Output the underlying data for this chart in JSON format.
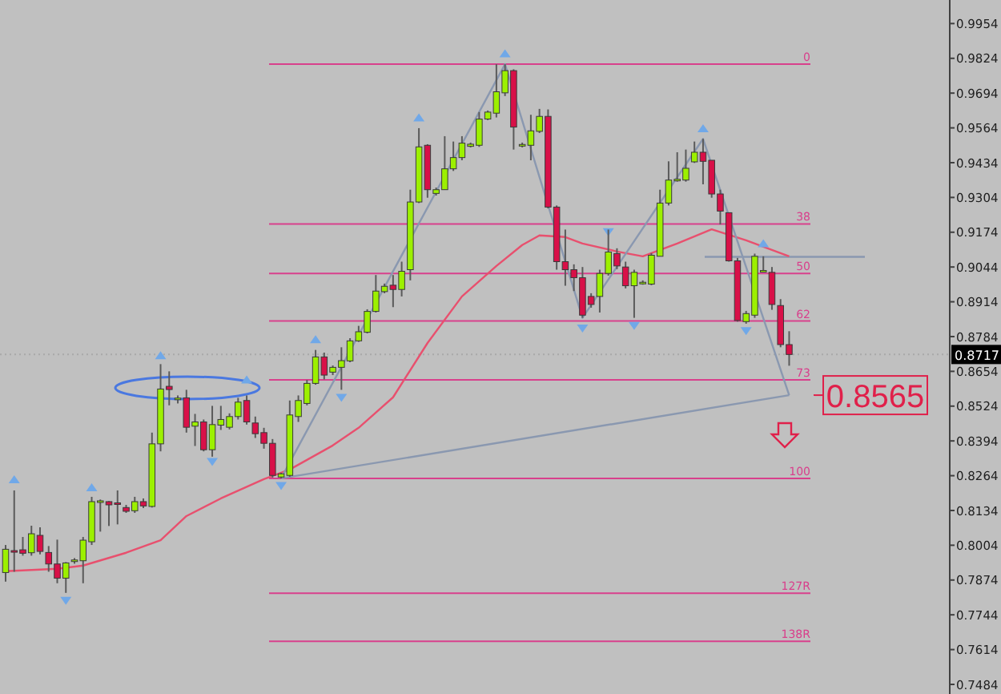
{
  "chart_data": {
    "type": "candlestick",
    "tick_labels": "y",
    "grid": false,
    "categories": [
      null,
      null,
      null,
      null,
      null,
      null,
      null,
      null,
      null,
      null,
      null,
      null,
      null,
      null,
      null,
      null,
      null,
      null,
      null,
      null,
      null,
      null,
      null,
      null,
      null,
      null,
      null,
      null,
      null,
      null,
      null,
      null,
      null,
      null,
      null,
      null,
      null,
      null,
      null,
      null,
      null,
      null,
      null,
      null,
      null,
      null,
      null,
      null,
      null,
      null,
      null,
      null,
      null,
      null,
      null,
      null,
      null,
      null,
      null,
      null,
      null,
      null,
      null,
      null,
      null,
      null,
      null,
      null,
      null,
      null,
      null,
      null,
      null,
      null,
      null,
      null,
      null,
      null,
      null,
      null,
      null,
      null,
      null,
      null,
      null,
      null,
      null,
      null,
      null,
      null,
      null,
      null,
      null,
      null,
      null,
      null,
      null,
      null,
      null,
      null,
      null,
      null,
      null,
      null,
      null,
      null,
      null,
      null,
      null,
      null
    ],
    "colors": [
      "#9cf000",
      "#d81048",
      "#d81048",
      "#9cf000",
      "#d81048",
      "#d81048",
      "#d81048",
      "#9cf000",
      "#9cf000",
      "#9cf000",
      "#9cf000",
      "#9cf000",
      "#d81048",
      "#d81048",
      "#d81048",
      "#9cf000",
      "#d81048",
      "#9cf000",
      "#9cf000",
      "#d81048",
      "#9cf000",
      "#d81048",
      "#9cf000",
      "#d81048",
      "#9cf000",
      "#9cf000",
      "#9cf000",
      "#9cf000",
      "#d81048",
      "#d81048",
      "#d81048",
      "#d81048",
      "#9cf000",
      "#9cf000",
      "#9cf000",
      "#9cf000",
      "#9cf000",
      "#d81048",
      "#9cf000",
      "#9cf000",
      "#9cf000",
      "#9cf000",
      "#9cf000",
      "#9cf000",
      "#9cf000",
      "#d81048",
      "#9cf000",
      "#9cf000",
      "#9cf000",
      "#d81048",
      "#9cf000",
      "#9cf000",
      "#9cf000",
      "#9cf000",
      "#9cf000",
      "#9cf000",
      "#9cf000",
      "#9cf000",
      "#9cf000",
      "#d81048",
      "#9cf000",
      "#9cf000",
      "#9cf000",
      "#d81048",
      "#d81048",
      "#d81048",
      "#d81048",
      "#d81048",
      "#d81048",
      "#9cf000",
      "#9cf000",
      "#d81048",
      "#d81048",
      "#9cf000",
      "#9cf000",
      "#9cf000",
      "#9cf000",
      "#9cf000",
      "#9cf000",
      "#9cf000",
      "#9cf000",
      "#d81048",
      "#d81048",
      "#d81048",
      "#d81048",
      "#d81048",
      "#9cf000",
      "#9cf000",
      "#9cf000",
      "#d81048",
      "#d81048",
      "#d81048",
      null,
      null,
      null,
      null,
      null,
      null,
      null,
      null,
      null,
      null,
      null,
      null,
      null,
      null,
      null,
      null,
      null,
      null
    ],
    "ylim": [
      0.7448,
      1.0042
    ],
    "yticks": [
      0.9954,
      0.9824,
      0.9694,
      0.9564,
      0.9434,
      0.9304,
      0.9174,
      0.9044,
      0.8914,
      0.8784,
      0.8654,
      0.8524,
      0.8394,
      0.8264,
      0.8134,
      0.8004,
      0.7874,
      0.7744,
      0.7614,
      0.7484
    ],
    "ohlc": [
      [
        0.7902,
        0.8005,
        0.7868,
        0.7989
      ],
      [
        0.7984,
        0.8209,
        0.7905,
        0.7978
      ],
      [
        0.7987,
        0.8035,
        0.7965,
        0.7974
      ],
      [
        0.7976,
        0.8077,
        0.7965,
        0.8047
      ],
      [
        0.8041,
        0.8071,
        0.797,
        0.7981
      ],
      [
        0.7977,
        0.8001,
        0.7905,
        0.7934
      ],
      [
        0.7934,
        0.8025,
        0.7862,
        0.7881
      ],
      [
        0.7881,
        0.7941,
        0.7826,
        0.7938
      ],
      [
        0.7946,
        0.7956,
        0.7935,
        0.7946
      ],
      [
        0.7946,
        0.8035,
        0.7862,
        0.8023
      ],
      [
        0.8017,
        0.8185,
        0.8005,
        0.8167
      ],
      [
        0.8167,
        0.8175,
        0.8055,
        0.8167
      ],
      [
        0.8167,
        0.8169,
        0.8076,
        0.8155
      ],
      [
        0.8161,
        0.8209,
        0.8082,
        0.8158
      ],
      [
        0.8145,
        0.8155,
        0.8125,
        0.8131
      ],
      [
        0.8133,
        0.8185,
        0.8125,
        0.8167
      ],
      [
        0.8167,
        0.8179,
        0.8143,
        0.8151
      ],
      [
        0.8149,
        0.8425,
        0.8145,
        0.8383
      ],
      [
        0.8383,
        0.8681,
        0.8355,
        0.8588
      ],
      [
        0.8598,
        0.8654,
        0.8527,
        0.8586
      ],
      [
        0.8551,
        0.8564,
        0.8534,
        0.8551
      ],
      [
        0.8555,
        0.8585,
        0.8425,
        0.8445
      ],
      [
        0.8449,
        0.8495,
        0.8375,
        0.8465
      ],
      [
        0.8465,
        0.8474,
        0.8355,
        0.8361
      ],
      [
        0.8361,
        0.8525,
        0.8335,
        0.8455
      ],
      [
        0.8453,
        0.8525,
        0.8435,
        0.8474
      ],
      [
        0.8445,
        0.8497,
        0.8437,
        0.8485
      ],
      [
        0.8485,
        0.8555,
        0.8474,
        0.8539
      ],
      [
        0.8545,
        0.8564,
        0.8455,
        0.8465
      ],
      [
        0.8461,
        0.8485,
        0.8405,
        0.8421
      ],
      [
        0.8425,
        0.8443,
        0.8365,
        0.8385
      ],
      [
        0.8385,
        0.8401,
        0.8257,
        0.8265
      ],
      [
        0.8259,
        0.8275,
        0.8254,
        0.8271
      ],
      [
        0.8265,
        0.8545,
        0.826,
        0.8491
      ],
      [
        0.8485,
        0.8564,
        0.8465,
        0.8545
      ],
      [
        0.8534,
        0.8622,
        0.8527,
        0.8609
      ],
      [
        0.8609,
        0.8734,
        0.8604,
        0.8708
      ],
      [
        0.8708,
        0.8724,
        0.8624,
        0.864
      ],
      [
        0.8651,
        0.8676,
        0.864,
        0.8669
      ],
      [
        0.8669,
        0.8744,
        0.8585,
        0.8694
      ],
      [
        0.8693,
        0.8778,
        0.8688,
        0.8768
      ],
      [
        0.8768,
        0.8824,
        0.8764,
        0.8802
      ],
      [
        0.88,
        0.8886,
        0.8796,
        0.8878
      ],
      [
        0.8878,
        0.9014,
        0.8874,
        0.8954
      ],
      [
        0.8952,
        0.8982,
        0.8946,
        0.8972
      ],
      [
        0.8976,
        0.9014,
        0.8894,
        0.896
      ],
      [
        0.896,
        0.9064,
        0.8934,
        0.9028
      ],
      [
        0.9034,
        0.9333,
        0.8994,
        0.9287
      ],
      [
        0.9287,
        0.9563,
        0.9283,
        0.9493
      ],
      [
        0.9499,
        0.9503,
        0.9303,
        0.9333
      ],
      [
        0.9319,
        0.9341,
        0.9311,
        0.9333
      ],
      [
        0.9333,
        0.9533,
        0.9333,
        0.9411
      ],
      [
        0.9411,
        0.9513,
        0.9403,
        0.9453
      ],
      [
        0.9453,
        0.9533,
        0.9443,
        0.9507
      ],
      [
        0.9495,
        0.9509,
        0.9491,
        0.9503
      ],
      [
        0.9499,
        0.9623,
        0.9493,
        0.9597
      ],
      [
        0.9597,
        0.9629,
        0.9593,
        0.9623
      ],
      [
        0.9619,
        0.9802,
        0.9603,
        0.9699
      ],
      [
        0.9695,
        0.9802,
        0.9683,
        0.9778
      ],
      [
        0.9778,
        0.9783,
        0.9483,
        0.9567
      ],
      [
        0.9499,
        0.9509,
        0.9491,
        0.9499
      ],
      [
        0.9499,
        0.9613,
        0.9443,
        0.9553
      ],
      [
        0.9551,
        0.9635,
        0.9545,
        0.9607
      ],
      [
        0.9607,
        0.9633,
        0.9263,
        0.9268
      ],
      [
        0.9268,
        0.9274,
        0.9034,
        0.9064
      ],
      [
        0.9064,
        0.9184,
        0.8974,
        0.9034
      ],
      [
        0.9034,
        0.9054,
        0.8954,
        0.9004
      ],
      [
        0.9004,
        0.9044,
        0.8854,
        0.8864
      ],
      [
        0.8934,
        0.8946,
        0.8892,
        0.8904
      ],
      [
        0.8934,
        0.9034,
        0.8874,
        0.902
      ],
      [
        0.902,
        0.9184,
        0.9012,
        0.91
      ],
      [
        0.9094,
        0.9114,
        0.9036,
        0.9048
      ],
      [
        0.9044,
        0.9064,
        0.8964,
        0.8974
      ],
      [
        0.8974,
        0.9034,
        0.8854,
        0.9024
      ],
      [
        0.8984,
        0.8994,
        0.8978,
        0.8984
      ],
      [
        0.898,
        0.9096,
        0.8976,
        0.9088
      ],
      [
        0.9084,
        0.9333,
        0.9084,
        0.9283
      ],
      [
        0.9283,
        0.9439,
        0.9274,
        0.9369
      ],
      [
        0.9369,
        0.9473,
        0.9363,
        0.9369
      ],
      [
        0.9369,
        0.9483,
        0.9363,
        0.9413
      ],
      [
        0.9437,
        0.9513,
        0.9433,
        0.9473
      ],
      [
        0.9473,
        0.9523,
        0.9353,
        0.9439
      ],
      [
        0.9443,
        0.9443,
        0.9303,
        0.9317
      ],
      [
        0.9317,
        0.9333,
        0.9203,
        0.9253
      ],
      [
        0.9247,
        0.9247,
        0.9064,
        0.9067
      ],
      [
        0.9067,
        0.9078,
        0.884,
        0.8844
      ],
      [
        0.884,
        0.888,
        0.8832,
        0.887
      ],
      [
        0.8864,
        0.9094,
        0.8854,
        0.9084
      ],
      [
        0.9028,
        0.9084,
        0.9024,
        0.9028
      ],
      [
        0.9024,
        0.9044,
        0.8884,
        0.8904
      ],
      [
        0.89,
        0.8924,
        0.8744,
        0.8754
      ],
      [
        0.8754,
        0.8804,
        0.8675,
        0.8717
      ],
      null,
      null,
      null,
      null,
      null,
      null,
      null,
      null,
      null,
      null,
      null,
      null,
      null,
      null,
      null,
      null,
      null,
      null
    ],
    "series": [
      {
        "type": "line",
        "color": "#e8506e",
        "values": [
          0.7907,
          null,
          null,
          null,
          null,
          null,
          0.7916,
          null,
          null,
          0.7928,
          null,
          null,
          null,
          null,
          0.7976,
          null,
          null,
          null,
          0.8023,
          null,
          null,
          0.8113,
          null,
          null,
          null,
          0.8179,
          null,
          null,
          null,
          null,
          0.8251,
          null,
          null,
          0.8287,
          null,
          null,
          null,
          null,
          0.8377,
          null,
          null,
          0.8443,
          null,
          null,
          null,
          0.8557,
          null,
          null,
          null,
          0.876,
          null,
          null,
          null,
          0.8934,
          null,
          null,
          null,
          0.9048,
          null,
          null,
          0.9126,
          null,
          0.9162,
          null,
          null,
          0.9156,
          null,
          0.9132,
          null,
          null,
          null,
          0.9102,
          null,
          null,
          0.9084,
          null,
          null,
          null,
          0.9132,
          null,
          null,
          null,
          0.9185,
          null,
          null,
          null,
          0.9144,
          null,
          null,
          null,
          null,
          0.9084,
          null,
          null,
          null,
          null,
          null,
          null,
          null,
          null,
          null,
          null,
          null,
          null,
          null,
          null,
          null,
          null,
          null,
          null
        ]
      },
      {
        "type": "line",
        "color": "#8a98b0",
        "values": [
          null,
          null,
          null,
          null,
          null,
          null,
          null,
          null,
          null,
          null,
          null,
          null,
          null,
          null,
          null,
          null,
          null,
          null,
          null,
          null,
          null,
          null,
          null,
          null,
          null,
          null,
          null,
          null,
          null,
          null,
          null,
          null,
          0.8254,
          null,
          null,
          null,
          null,
          null,
          null,
          null,
          null,
          null,
          null,
          null,
          null,
          null,
          null,
          null,
          null,
          null,
          null,
          null,
          null,
          null,
          null,
          null,
          null,
          null,
          0.9802,
          null,
          null,
          null,
          null,
          null,
          null,
          null,
          null,
          0.8854,
          null,
          null,
          null,
          null,
          null,
          null,
          null,
          null,
          null,
          null,
          null,
          null,
          null,
          0.9523,
          null,
          null,
          null,
          null,
          null,
          null,
          null,
          null,
          null,
          0.8565,
          null,
          null,
          null,
          null,
          null,
          null,
          null,
          null,
          null,
          null,
          null,
          null,
          null,
          null,
          null,
          null,
          null,
          null
        ]
      },
      {
        "type": "line",
        "color": "#8a98b0",
        "values": [
          null,
          null,
          null,
          null,
          null,
          null,
          null,
          null,
          null,
          null,
          null,
          null,
          null,
          null,
          null,
          null,
          null,
          null,
          null,
          null,
          null,
          null,
          null,
          null,
          null,
          null,
          null,
          null,
          null,
          null,
          null,
          null,
          0.8254,
          null,
          null,
          null,
          null,
          null,
          null,
          null,
          null,
          null,
          null,
          null,
          null,
          null,
          null,
          null,
          null,
          null,
          null,
          null,
          null,
          null,
          null,
          null,
          null,
          null,
          null,
          null,
          null,
          null,
          null,
          null,
          null,
          null,
          null,
          null,
          null,
          null,
          null,
          null,
          null,
          null,
          null,
          null,
          null,
          null,
          null,
          null,
          null,
          null,
          null,
          null,
          null,
          null,
          null,
          null,
          null,
          null,
          null,
          0.8565,
          null,
          null,
          null,
          null,
          null,
          null,
          null,
          null,
          null,
          null,
          null,
          null,
          null,
          null,
          null,
          null,
          null,
          null
        ]
      },
      {
        "type": "scatter",
        "marker": "triangle",
        "color": "#70a8e8",
        "values": [
          null,
          0.8251,
          null,
          null,
          null,
          null,
          null,
          null,
          null,
          null,
          0.8221,
          null,
          null,
          null,
          null,
          null,
          null,
          null,
          0.8714,
          null,
          null,
          null,
          null,
          null,
          null,
          null,
          null,
          null,
          0.8624,
          null,
          null,
          null,
          null,
          null,
          null,
          null,
          0.8774,
          null,
          null,
          null,
          null,
          null,
          null,
          null,
          null,
          null,
          null,
          null,
          0.9603,
          null,
          null,
          null,
          null,
          null,
          null,
          null,
          null,
          null,
          0.9843,
          null,
          null,
          null,
          null,
          null,
          null,
          null,
          null,
          null,
          null,
          null,
          0.9174,
          null,
          null,
          null,
          null,
          null,
          null,
          null,
          null,
          null,
          null,
          0.9563,
          null,
          null,
          null,
          null,
          null,
          null,
          0.9133,
          null,
          null,
          null,
          null,
          null,
          null,
          null,
          null,
          null,
          null,
          null,
          null,
          null,
          null,
          null,
          null,
          null,
          null,
          null,
          null,
          null
        ]
      },
      {
        "type": "scatter",
        "marker": "triangle",
        "color": "#70a8e8",
        "values": [
          null,
          null,
          null,
          null,
          null,
          null,
          null,
          0.7796,
          null,
          null,
          null,
          null,
          null,
          null,
          null,
          null,
          null,
          null,
          null,
          null,
          null,
          null,
          null,
          null,
          0.8315,
          null,
          null,
          null,
          null,
          null,
          null,
          null,
          0.8225,
          null,
          null,
          null,
          null,
          null,
          null,
          0.8555,
          null,
          null,
          null,
          null,
          null,
          null,
          null,
          null,
          null,
          null,
          null,
          null,
          null,
          null,
          null,
          null,
          null,
          null,
          null,
          null,
          null,
          null,
          null,
          null,
          null,
          null,
          null,
          0.8814,
          null,
          null,
          null,
          null,
          null,
          0.8824,
          null,
          null,
          null,
          null,
          null,
          null,
          null,
          null,
          null,
          null,
          null,
          null,
          0.8804,
          null,
          null,
          null,
          null,
          null,
          null,
          null,
          null,
          null,
          null,
          null,
          null,
          null,
          null,
          null,
          null,
          null,
          null,
          null,
          null,
          null,
          null,
          null
        ]
      }
    ],
    "ref_lines": [
      {
        "axis": "y",
        "value": 0.9802,
        "color": "#d8408c"
      },
      {
        "axis": "y",
        "value": 0.9205,
        "color": "#d8408c"
      },
      {
        "axis": "y",
        "value": 0.902,
        "color": "#d8408c"
      },
      {
        "axis": "y",
        "value": 0.8842,
        "color": "#d8408c"
      },
      {
        "axis": "y",
        "value": 0.8622,
        "color": "#d8408c"
      },
      {
        "axis": "y",
        "value": 0.8254,
        "color": "#d8408c"
      },
      {
        "axis": "y",
        "value": 0.7825,
        "color": "#d8408c"
      },
      {
        "axis": "y",
        "value": 0.7645,
        "color": "#d8408c"
      },
      {
        "axis": "y",
        "value": 0.8565,
        "label": "0.8565",
        "color": "#e0204a"
      },
      {
        "axis": "y",
        "value": 0.9082,
        "color": "#8a98b0"
      },
      {
        "axis": "y",
        "value": 0.8717,
        "label": "0.8717",
        "color": "#a8a8a8",
        "line_style": "dotted"
      }
    ],
    "annotations": [
      {
        "text": "0",
        "y": 0.9802
      },
      {
        "text": "38",
        "y": 0.9205
      },
      {
        "text": "50",
        "y": 0.902
      },
      {
        "text": "62",
        "y": 0.8842
      },
      {
        "text": "73",
        "y": 0.8622
      },
      {
        "text": "100",
        "y": 0.8254
      },
      {
        "text": "127R",
        "y": 0.7825
      },
      {
        "text": "138R",
        "y": 0.7645
      }
    ]
  }
}
